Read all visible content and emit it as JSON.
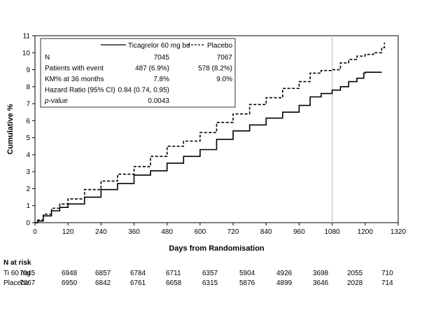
{
  "chart_data": {
    "type": "line",
    "title": "",
    "xlabel": "Days from Randomisation",
    "ylabel": "Cumulative %",
    "xlim": [
      0,
      1320
    ],
    "ylim": [
      0,
      11
    ],
    "x_ticks": [
      "0",
      "120",
      "240",
      "360",
      "480",
      "600",
      "720",
      "840",
      "960",
      "1080",
      "1200",
      "1320"
    ],
    "y_ticks": [
      "0",
      "1",
      "2",
      "3",
      "4",
      "5",
      "6",
      "7",
      "8",
      "9",
      "10",
      "11"
    ],
    "reference_line_x": 1080,
    "grid": false,
    "legend_position": "top-left",
    "series": [
      {
        "name": "Ticagrelor 60 mg bd",
        "style": "solid",
        "color": "#000000",
        "x": [
          0,
          10,
          30,
          60,
          90,
          120,
          180,
          240,
          300,
          360,
          420,
          480,
          540,
          600,
          660,
          720,
          780,
          840,
          900,
          960,
          1000,
          1040,
          1080,
          1110,
          1140,
          1170,
          1195,
          1200,
          1230,
          1260
        ],
        "y": [
          0,
          0.1,
          0.4,
          0.7,
          0.9,
          1.1,
          1.5,
          1.95,
          2.3,
          2.8,
          3.05,
          3.5,
          3.9,
          4.3,
          4.9,
          5.4,
          5.75,
          6.15,
          6.5,
          6.9,
          7.4,
          7.6,
          7.8,
          8.0,
          8.3,
          8.5,
          8.8,
          8.85,
          8.85,
          8.85
        ]
      },
      {
        "name": "Placebo",
        "style": "dashed",
        "color": "#000000",
        "x": [
          0,
          10,
          30,
          60,
          90,
          120,
          180,
          240,
          300,
          360,
          420,
          480,
          540,
          600,
          660,
          720,
          780,
          840,
          900,
          960,
          1000,
          1040,
          1080,
          1110,
          1140,
          1170,
          1200,
          1230,
          1260,
          1270
        ],
        "y": [
          0,
          0.15,
          0.5,
          0.85,
          1.1,
          1.4,
          1.95,
          2.45,
          2.85,
          3.3,
          3.9,
          4.5,
          4.8,
          5.3,
          5.9,
          6.4,
          6.95,
          7.35,
          7.9,
          8.3,
          8.8,
          8.95,
          9.0,
          9.4,
          9.6,
          9.8,
          9.9,
          10.0,
          10.3,
          10.6
        ]
      }
    ],
    "legend_table": {
      "header": [
        "",
        "Ticagrelor 60 mg bd",
        "Placebo"
      ],
      "rows": [
        {
          "label": "N",
          "italic": false,
          "ticagrelor": "7045",
          "placebo": "7067"
        },
        {
          "label": "Patients with event",
          "italic": false,
          "ticagrelor": "487 (6.9%)",
          "placebo": "578 (8.2%)"
        },
        {
          "label": "KM% at 36 months",
          "italic": false,
          "ticagrelor": "7.8%",
          "placebo": "9.0%"
        },
        {
          "label": "Hazard Ratio (95% CI)",
          "italic": false,
          "ticagrelor": "0.84 (0.74, 0.95)",
          "placebo": ""
        },
        {
          "label_italic_part": "p",
          "label": "-value",
          "italic": true,
          "ticagrelor": "0.0043",
          "placebo": ""
        }
      ]
    },
    "risk_table": {
      "title": "N at risk",
      "rows": [
        {
          "label": "Ti 60 mg",
          "values": [
            "7045",
            "6948",
            "6857",
            "6784",
            "6711",
            "6357",
            "5904",
            "4926",
            "3698",
            "2055",
            "710"
          ]
        },
        {
          "label": "Placebo",
          "values": [
            "7067",
            "6950",
            "6842",
            "6761",
            "6658",
            "6315",
            "5876",
            "4899",
            "3646",
            "2028",
            "714"
          ]
        }
      ]
    }
  }
}
